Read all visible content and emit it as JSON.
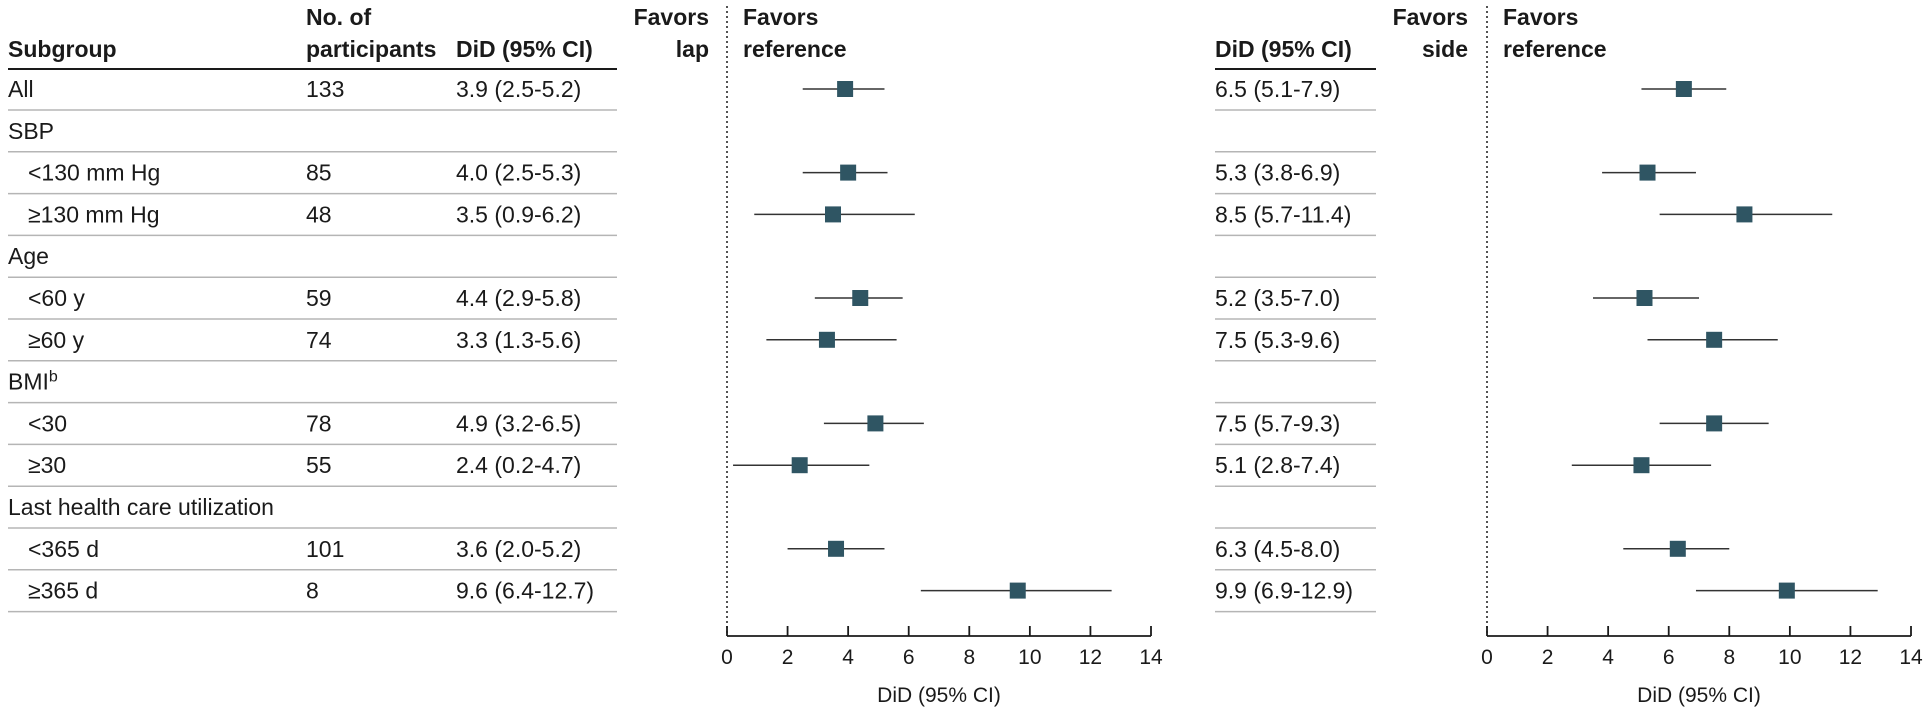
{
  "headers": {
    "subgroup": "Subgroup",
    "participants_line1": "No. of",
    "participants_line2": "participants",
    "did_left": "DiD (95% CI)",
    "did_right": "DiD (95% CI)"
  },
  "rows": [
    {
      "label": "All",
      "indent": false,
      "n": "133",
      "ci_left": "3.9 (2.5-5.2)",
      "ci_right": "6.5 (5.1-7.9)"
    },
    {
      "label": "SBP",
      "indent": false,
      "n": "",
      "ci_left": "",
      "ci_right": ""
    },
    {
      "label": "<130 mm Hg",
      "indent": true,
      "n": "85",
      "ci_left": "4.0 (2.5-5.3)",
      "ci_right": "5.3 (3.8-6.9)"
    },
    {
      "label": "≥130 mm Hg",
      "indent": true,
      "n": "48",
      "ci_left": "3.5 (0.9-6.2)",
      "ci_right": "8.5 (5.7-11.4)"
    },
    {
      "label": "Age",
      "indent": false,
      "n": "",
      "ci_left": "",
      "ci_right": ""
    },
    {
      "label": "<60 y",
      "indent": true,
      "n": "59",
      "ci_left": "4.4 (2.9-5.8)",
      "ci_right": "5.2 (3.5-7.0)"
    },
    {
      "label": "≥60 y",
      "indent": true,
      "n": "74",
      "ci_left": "3.3 (1.3-5.6)",
      "ci_right": "7.5 (5.3-9.6)"
    },
    {
      "label": "BMI",
      "sup": "b",
      "indent": false,
      "n": "",
      "ci_left": "",
      "ci_right": ""
    },
    {
      "label": "<30",
      "indent": true,
      "n": "78",
      "ci_left": "4.9 (3.2-6.5)",
      "ci_right": "7.5 (5.7-9.3)"
    },
    {
      "label": "≥30",
      "indent": true,
      "n": "55",
      "ci_left": "2.4 (0.2-4.7)",
      "ci_right": "5.1 (2.8-7.4)"
    },
    {
      "label": "Last health care utilization",
      "indent": false,
      "n": "",
      "ci_left": "",
      "ci_right": ""
    },
    {
      "label": "<365 d",
      "indent": true,
      "n": "101",
      "ci_left": "3.6 (2.0-5.2)",
      "ci_right": "6.3 (4.5-8.0)"
    },
    {
      "label": "≥365 d",
      "indent": true,
      "n": "8",
      "ci_left": "9.6 (6.4-12.7)",
      "ci_right": "9.9 (6.9-12.9)"
    }
  ],
  "chart_data": [
    {
      "type": "scatter",
      "panel": "left",
      "favors_left": [
        "Favors",
        "lap"
      ],
      "favors_right": [
        "Favors",
        "reference"
      ],
      "xlabel": "DiD (95% CI)",
      "xlim": [
        0,
        14
      ],
      "xticks": [
        0,
        2,
        4,
        6,
        8,
        10,
        12,
        14
      ],
      "reference_line": 0,
      "marker_color": "#2f5563",
      "points": [
        {
          "row": 0,
          "est": 3.9,
          "lo": 2.5,
          "hi": 5.2
        },
        {
          "row": 2,
          "est": 4.0,
          "lo": 2.5,
          "hi": 5.3
        },
        {
          "row": 3,
          "est": 3.5,
          "lo": 0.9,
          "hi": 6.2
        },
        {
          "row": 5,
          "est": 4.4,
          "lo": 2.9,
          "hi": 5.8
        },
        {
          "row": 6,
          "est": 3.3,
          "lo": 1.3,
          "hi": 5.6
        },
        {
          "row": 8,
          "est": 4.9,
          "lo": 3.2,
          "hi": 6.5
        },
        {
          "row": 9,
          "est": 2.4,
          "lo": 0.2,
          "hi": 4.7
        },
        {
          "row": 11,
          "est": 3.6,
          "lo": 2.0,
          "hi": 5.2
        },
        {
          "row": 12,
          "est": 9.6,
          "lo": 6.4,
          "hi": 12.7
        }
      ]
    },
    {
      "type": "scatter",
      "panel": "right",
      "favors_left": [
        "Favors",
        "side"
      ],
      "favors_right": [
        "Favors",
        "reference"
      ],
      "xlabel": "DiD (95% CI)",
      "xlim": [
        0,
        14
      ],
      "xticks": [
        0,
        2,
        4,
        6,
        8,
        10,
        12,
        14
      ],
      "reference_line": 0,
      "marker_color": "#2f5563",
      "points": [
        {
          "row": 0,
          "est": 6.5,
          "lo": 5.1,
          "hi": 7.9
        },
        {
          "row": 2,
          "est": 5.3,
          "lo": 3.8,
          "hi": 6.9
        },
        {
          "row": 3,
          "est": 8.5,
          "lo": 5.7,
          "hi": 11.4
        },
        {
          "row": 5,
          "est": 5.2,
          "lo": 3.5,
          "hi": 7.0
        },
        {
          "row": 6,
          "est": 7.5,
          "lo": 5.3,
          "hi": 9.6
        },
        {
          "row": 8,
          "est": 7.5,
          "lo": 5.7,
          "hi": 9.3
        },
        {
          "row": 9,
          "est": 5.1,
          "lo": 2.8,
          "hi": 7.4
        },
        {
          "row": 11,
          "est": 6.3,
          "lo": 4.5,
          "hi": 8.0
        },
        {
          "row": 12,
          "est": 9.9,
          "lo": 6.9,
          "hi": 12.9
        }
      ]
    }
  ]
}
